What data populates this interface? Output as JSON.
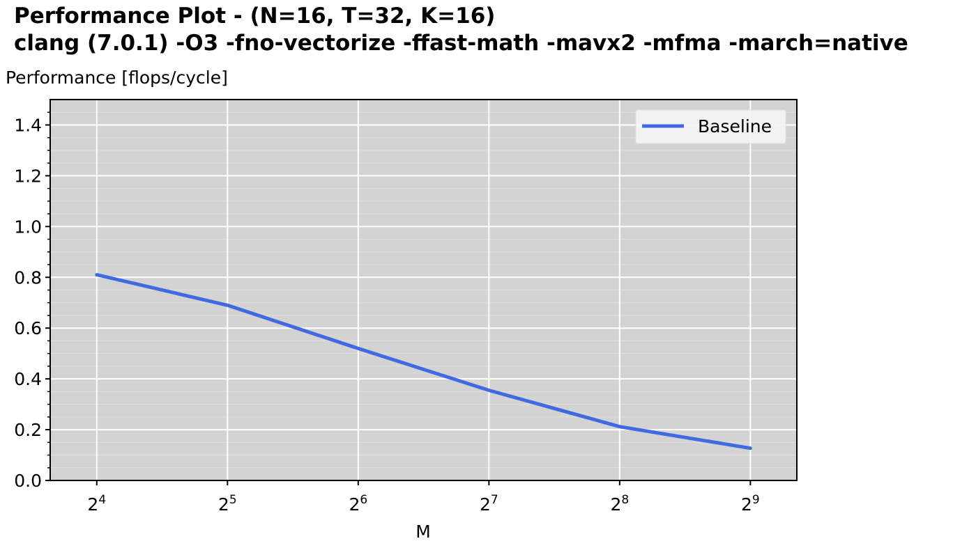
{
  "chart_data": {
    "type": "line",
    "title": "Performance Plot  -  (N=16, T=32, K=16)",
    "subtitle": "clang (7.0.1) -O3 -fno-vectorize -ffast-math -mavx2 -mfma -march=native",
    "ylabel": "Performance [flops/cycle]",
    "xlabel": "M",
    "x_scale": "log2",
    "x": [
      16,
      32,
      64,
      128,
      256,
      512
    ],
    "x_tick_labels": [
      {
        "base": "2",
        "exp": "4"
      },
      {
        "base": "2",
        "exp": "5"
      },
      {
        "base": "2",
        "exp": "6"
      },
      {
        "base": "2",
        "exp": "7"
      },
      {
        "base": "2",
        "exp": "8"
      },
      {
        "base": "2",
        "exp": "9"
      }
    ],
    "xlim": [
      12.5,
      655
    ],
    "ylim": [
      0,
      1.5
    ],
    "y_ticks": [
      "0.0",
      "0.2",
      "0.4",
      "0.6",
      "0.8",
      "1.0",
      "1.2",
      "1.4"
    ],
    "grid": true,
    "background": "#d3d3d3",
    "legend_position": "top-right",
    "series": [
      {
        "name": "Baseline",
        "color": "#4169e1",
        "values": [
          0.81,
          0.69,
          0.52,
          0.355,
          0.212,
          0.127
        ]
      }
    ]
  }
}
